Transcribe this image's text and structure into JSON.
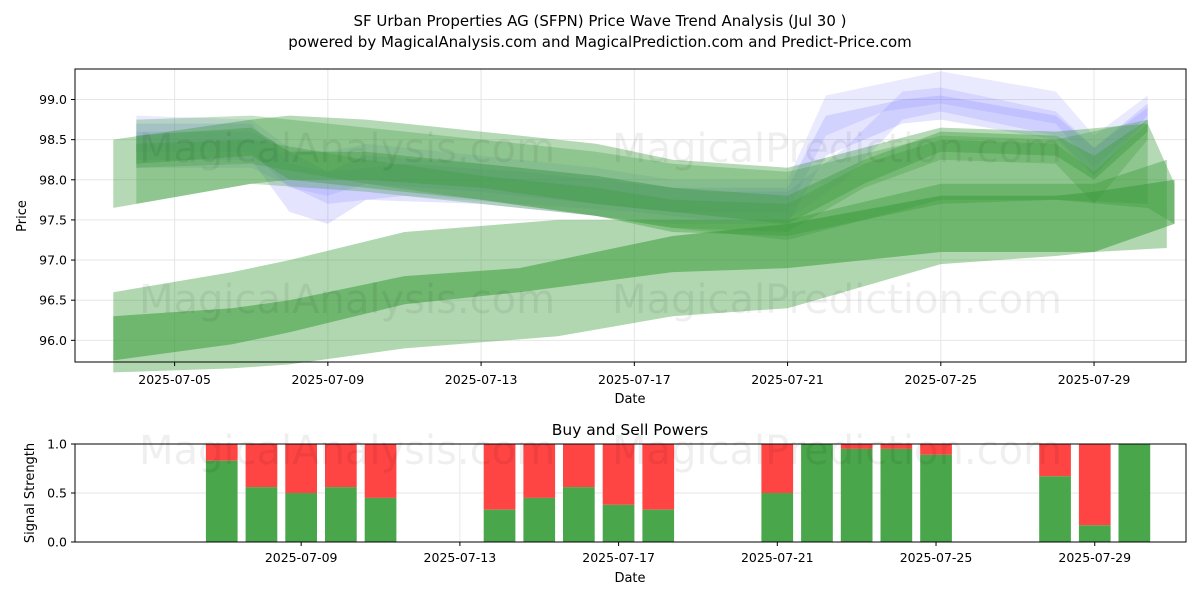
{
  "chart_data": [
    {
      "type": "area",
      "title": "SF Urban Properties AG (SFPN) Price Wave Trend Analysis (Jul 30 )",
      "subtitle": "powered by MagicalAnalysis.com and MagicalPrediction.com and Predict-Price.com",
      "xlabel": "Date",
      "ylabel": "Price",
      "x_day_range": [
        2.4,
        31.4
      ],
      "ylim": [
        95.73,
        99.38
      ],
      "x_ticks": [
        {
          "day": 5,
          "label": "2025-07-05"
        },
        {
          "day": 9,
          "label": "2025-07-09"
        },
        {
          "day": 13,
          "label": "2025-07-13"
        },
        {
          "day": 17,
          "label": "2025-07-17"
        },
        {
          "day": 21,
          "label": "2025-07-21"
        },
        {
          "day": 25,
          "label": "2025-07-25"
        },
        {
          "day": 29,
          "label": "2025-07-29"
        }
      ],
      "y_ticks": [
        96.0,
        96.5,
        97.0,
        97.5,
        98.0,
        98.5,
        99.0
      ],
      "series": [
        {
          "name": "blue-wave-band-1",
          "color": "#6a6aff",
          "opacity": 0.18,
          "x": [
            4,
            7,
            8,
            9,
            10,
            13,
            16,
            18,
            21,
            22,
            24,
            25,
            28,
            29,
            30.4
          ],
          "upper": [
            98.7,
            98.7,
            98.2,
            98.1,
            98.3,
            98.2,
            98.05,
            97.9,
            97.9,
            98.8,
            99.0,
            99.05,
            98.8,
            98.4,
            98.95
          ],
          "lower": [
            98.25,
            98.25,
            97.6,
            97.45,
            97.75,
            97.7,
            97.55,
            97.45,
            97.45,
            98.3,
            98.7,
            98.75,
            98.5,
            98.05,
            98.75
          ]
        },
        {
          "name": "blue-wave-band-2",
          "color": "#6a6aff",
          "opacity": 0.14,
          "x": [
            4,
            7,
            8,
            9,
            10,
            13,
            16,
            18,
            21,
            22,
            23.5,
            25,
            28,
            29,
            30.4
          ],
          "upper": [
            98.8,
            98.75,
            98.4,
            98.35,
            98.45,
            98.3,
            98.15,
            98.0,
            98.0,
            99.05,
            99.2,
            99.35,
            99.1,
            98.55,
            99.05
          ],
          "lower": [
            98.35,
            98.35,
            97.9,
            97.8,
            97.95,
            97.85,
            97.7,
            97.6,
            97.6,
            98.55,
            98.85,
            98.95,
            98.7,
            98.15,
            98.8
          ]
        },
        {
          "name": "blue-wave-band-3",
          "color": "#6a6aff",
          "opacity": 0.16,
          "x": [
            4,
            7,
            9,
            11,
            14,
            17,
            19,
            21,
            22.5,
            24,
            25,
            28,
            29,
            30.4
          ],
          "upper": [
            98.6,
            98.6,
            98.1,
            98.2,
            98.1,
            97.95,
            97.85,
            97.85,
            98.4,
            99.1,
            99.15,
            98.85,
            98.4,
            98.9
          ],
          "lower": [
            98.15,
            98.15,
            97.7,
            97.8,
            97.7,
            97.6,
            97.5,
            97.5,
            98.0,
            98.75,
            98.85,
            98.55,
            98.05,
            98.7
          ]
        },
        {
          "name": "green-wave-band-1",
          "color": "#3a9a3a",
          "opacity": 0.38,
          "x": [
            4,
            7,
            8,
            10,
            13,
            16,
            18,
            21,
            23,
            25,
            28,
            29,
            30.4
          ],
          "upper": [
            98.55,
            98.65,
            98.35,
            98.35,
            98.2,
            98.05,
            97.9,
            97.8,
            98.25,
            98.6,
            98.55,
            98.3,
            98.75
          ],
          "lower": [
            98.2,
            98.3,
            98.0,
            98.0,
            97.9,
            97.7,
            97.6,
            97.45,
            97.95,
            98.35,
            98.3,
            98.0,
            98.6
          ]
        },
        {
          "name": "green-wave-band-2",
          "color": "#3a9a3a",
          "opacity": 0.3,
          "x": [
            4,
            7,
            10,
            13,
            16,
            18,
            21,
            23,
            25,
            28,
            29,
            30.4
          ],
          "upper": [
            98.45,
            98.5,
            98.25,
            98.05,
            97.9,
            97.75,
            97.7,
            98.2,
            98.5,
            98.45,
            98.1,
            98.7
          ],
          "lower": [
            98.15,
            98.2,
            97.95,
            97.75,
            97.55,
            97.4,
            97.35,
            97.9,
            98.25,
            98.2,
            97.7,
            98.5
          ]
        },
        {
          "name": "green-wave-band-3",
          "color": "#3a9a3a",
          "opacity": 0.38,
          "x": [
            3.4,
            7,
            8,
            10,
            13,
            16,
            18,
            21,
            25,
            28,
            30.4,
            31.1
          ],
          "upper": [
            98.5,
            98.75,
            98.8,
            98.75,
            98.6,
            98.45,
            98.25,
            98.15,
            98.65,
            98.6,
            98.7,
            97.95
          ],
          "lower": [
            97.65,
            97.95,
            98.0,
            97.9,
            97.75,
            97.55,
            97.35,
            97.3,
            97.7,
            97.75,
            97.65,
            97.45
          ]
        },
        {
          "name": "green-wave-band-4",
          "color": "#3a9a3a",
          "opacity": 0.3,
          "x": [
            4,
            7,
            10,
            13,
            16,
            18,
            21,
            25,
            28,
            30.4
          ],
          "upper": [
            98.75,
            98.8,
            98.65,
            98.5,
            98.35,
            98.2,
            98.1,
            98.55,
            98.5,
            98.75
          ],
          "lower": [
            97.7,
            97.95,
            97.85,
            97.7,
            97.55,
            97.4,
            97.25,
            97.75,
            97.75,
            97.7
          ]
        },
        {
          "name": "green-lower-wide-band",
          "color": "#3a9a3a",
          "opacity": 0.4,
          "x": [
            3.4,
            6.5,
            8,
            11,
            15,
            18,
            21,
            25,
            28,
            29,
            30.9
          ],
          "upper": [
            96.6,
            96.85,
            97.0,
            97.35,
            97.5,
            97.5,
            97.5,
            97.95,
            97.95,
            97.95,
            98.25
          ],
          "lower": [
            95.6,
            95.65,
            95.7,
            95.9,
            96.05,
            96.3,
            96.4,
            96.95,
            97.05,
            97.1,
            97.15
          ]
        },
        {
          "name": "green-lower-core-band",
          "color": "#3a9a3a",
          "opacity": 0.55,
          "x": [
            3.4,
            6.5,
            8,
            11,
            14,
            18,
            21,
            25,
            28,
            29,
            31.1
          ],
          "upper": [
            96.3,
            96.4,
            96.5,
            96.8,
            96.9,
            97.3,
            97.45,
            97.8,
            97.8,
            97.85,
            98.0
          ],
          "lower": [
            95.75,
            95.95,
            96.1,
            96.45,
            96.6,
            96.85,
            96.9,
            97.1,
            97.1,
            97.1,
            97.45
          ]
        }
      ]
    },
    {
      "type": "bar",
      "title": "Buy and Sell Powers",
      "xlabel": "Date",
      "ylabel": "Signal Strength",
      "x_day_range": [
        3.3,
        31.3
      ],
      "ylim": [
        0,
        1.0
      ],
      "y_ticks": [
        {
          "value": 0.0,
          "label": "0.0"
        },
        {
          "value": 0.5,
          "label": "0.5"
        },
        {
          "value": 1.0,
          "label": "1.0"
        }
      ],
      "x_ticks": [
        {
          "day": 9,
          "label": "2025-07-09"
        },
        {
          "day": 13,
          "label": "2025-07-13"
        },
        {
          "day": 17,
          "label": "2025-07-17"
        },
        {
          "day": 21,
          "label": "2025-07-21"
        },
        {
          "day": 25,
          "label": "2025-07-25"
        },
        {
          "day": 29,
          "label": "2025-07-29"
        }
      ],
      "buy_color": "#4aa64a",
      "sell_color": "#ff4444",
      "bars": [
        {
          "day": 7,
          "buy": 0.83
        },
        {
          "day": 8,
          "buy": 0.56
        },
        {
          "day": 9,
          "buy": 0.5
        },
        {
          "day": 10,
          "buy": 0.56
        },
        {
          "day": 11,
          "buy": 0.45
        },
        {
          "day": 14,
          "buy": 0.33
        },
        {
          "day": 15,
          "buy": 0.45
        },
        {
          "day": 16,
          "buy": 0.56
        },
        {
          "day": 17,
          "buy": 0.38
        },
        {
          "day": 18,
          "buy": 0.33
        },
        {
          "day": 21,
          "buy": 0.5
        },
        {
          "day": 22,
          "buy": 1.0
        },
        {
          "day": 23,
          "buy": 0.95
        },
        {
          "day": 24,
          "buy": 0.95
        },
        {
          "day": 25,
          "buy": 0.89
        },
        {
          "day": 28,
          "buy": 0.67
        },
        {
          "day": 29,
          "buy": 0.17
        },
        {
          "day": 30,
          "buy": 1.0
        }
      ]
    }
  ],
  "watermarks": {
    "left": "MagicalAnalysis.com",
    "right": "MagicalPrediction.com"
  }
}
